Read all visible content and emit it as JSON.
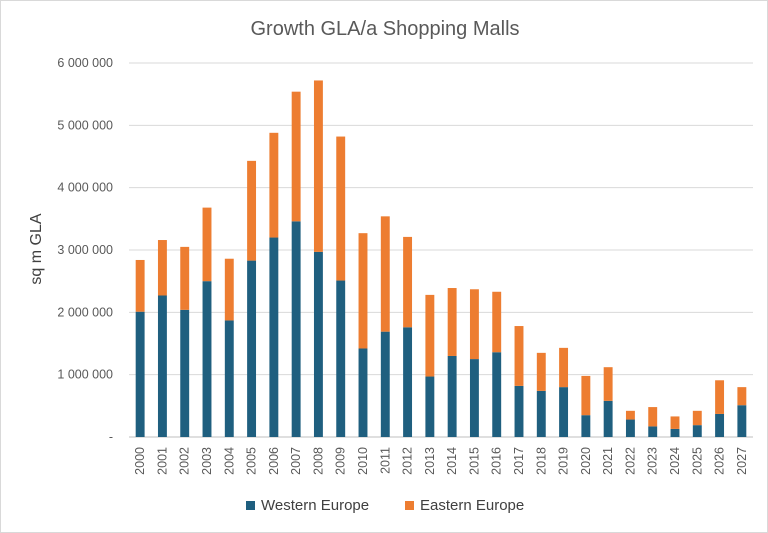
{
  "chart_data": {
    "type": "bar",
    "stacked": true,
    "title": "Growth GLA/a Shopping Malls",
    "xlabel": "",
    "ylabel": "sq m GLA",
    "ylim": [
      0,
      6000000
    ],
    "yticks": [
      0,
      1000000,
      2000000,
      3000000,
      4000000,
      5000000,
      6000000
    ],
    "ytick_labels": [
      "-",
      "1 000 000",
      "2 000 000",
      "3 000 000",
      "4 000 000",
      "5 000 000",
      "6 000 000"
    ],
    "grid": true,
    "legend_position": "bottom",
    "categories": [
      "2000",
      "2001",
      "2002",
      "2003",
      "2004",
      "2005",
      "2006",
      "2007",
      "2008",
      "2009",
      "2010",
      "2011",
      "2012",
      "2013",
      "2014",
      "2015",
      "2016",
      "2017",
      "2018",
      "2019",
      "2020",
      "2021",
      "2022",
      "2023",
      "2024",
      "2025",
      "2026",
      "2027"
    ],
    "series": [
      {
        "name": "Western Europe",
        "color": "#1f5f7f",
        "values": [
          2010000,
          2270000,
          2040000,
          2500000,
          1870000,
          2830000,
          3200000,
          3460000,
          2970000,
          2510000,
          1420000,
          1690000,
          1760000,
          970000,
          1300000,
          1250000,
          1360000,
          820000,
          740000,
          800000,
          350000,
          580000,
          280000,
          170000,
          130000,
          190000,
          370000,
          510000
        ]
      },
      {
        "name": "Eastern Europe",
        "color": "#ed7d31",
        "values": [
          830000,
          890000,
          1010000,
          1180000,
          990000,
          1600000,
          1680000,
          2080000,
          2750000,
          2310000,
          1850000,
          1850000,
          1450000,
          1310000,
          1090000,
          1120000,
          970000,
          960000,
          610000,
          630000,
          630000,
          540000,
          140000,
          310000,
          200000,
          230000,
          540000,
          290000
        ]
      }
    ]
  }
}
